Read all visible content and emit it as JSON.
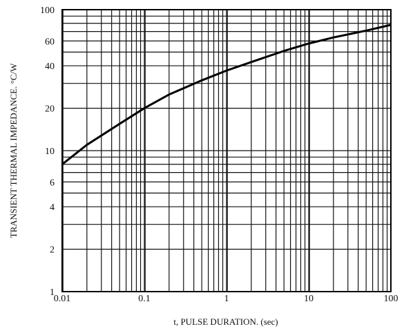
{
  "chart_data": {
    "type": "line",
    "title": "",
    "xlabel": "t, PULSE DURATION. (sec)",
    "ylabel": "TRANSIENT THERMAL IMPEDANCE. °C/W",
    "xscale": "log",
    "yscale": "log",
    "xlim": [
      0.01,
      100
    ],
    "ylim": [
      1,
      100
    ],
    "grid": true,
    "legend": "none",
    "x_tick_labels": [
      "0.01",
      "0.1",
      "1",
      "10",
      "100"
    ],
    "y_tick_labels": [
      "1",
      "2",
      "4",
      "6",
      "10",
      "20",
      "40",
      "60",
      "100"
    ],
    "series": [
      {
        "x": [
          0.01,
          0.02,
          0.05,
          0.1,
          0.2,
          0.5,
          1,
          2,
          5,
          10,
          20,
          50,
          100
        ],
        "y": [
          8.0,
          11.0,
          15.5,
          20.0,
          25.0,
          31.5,
          37.0,
          42.5,
          51.0,
          57.5,
          63.5,
          71.0,
          78.0
        ]
      }
    ],
    "colors": {
      "grid": "#111111",
      "curve": "#000000",
      "frame": "#000000"
    }
  }
}
